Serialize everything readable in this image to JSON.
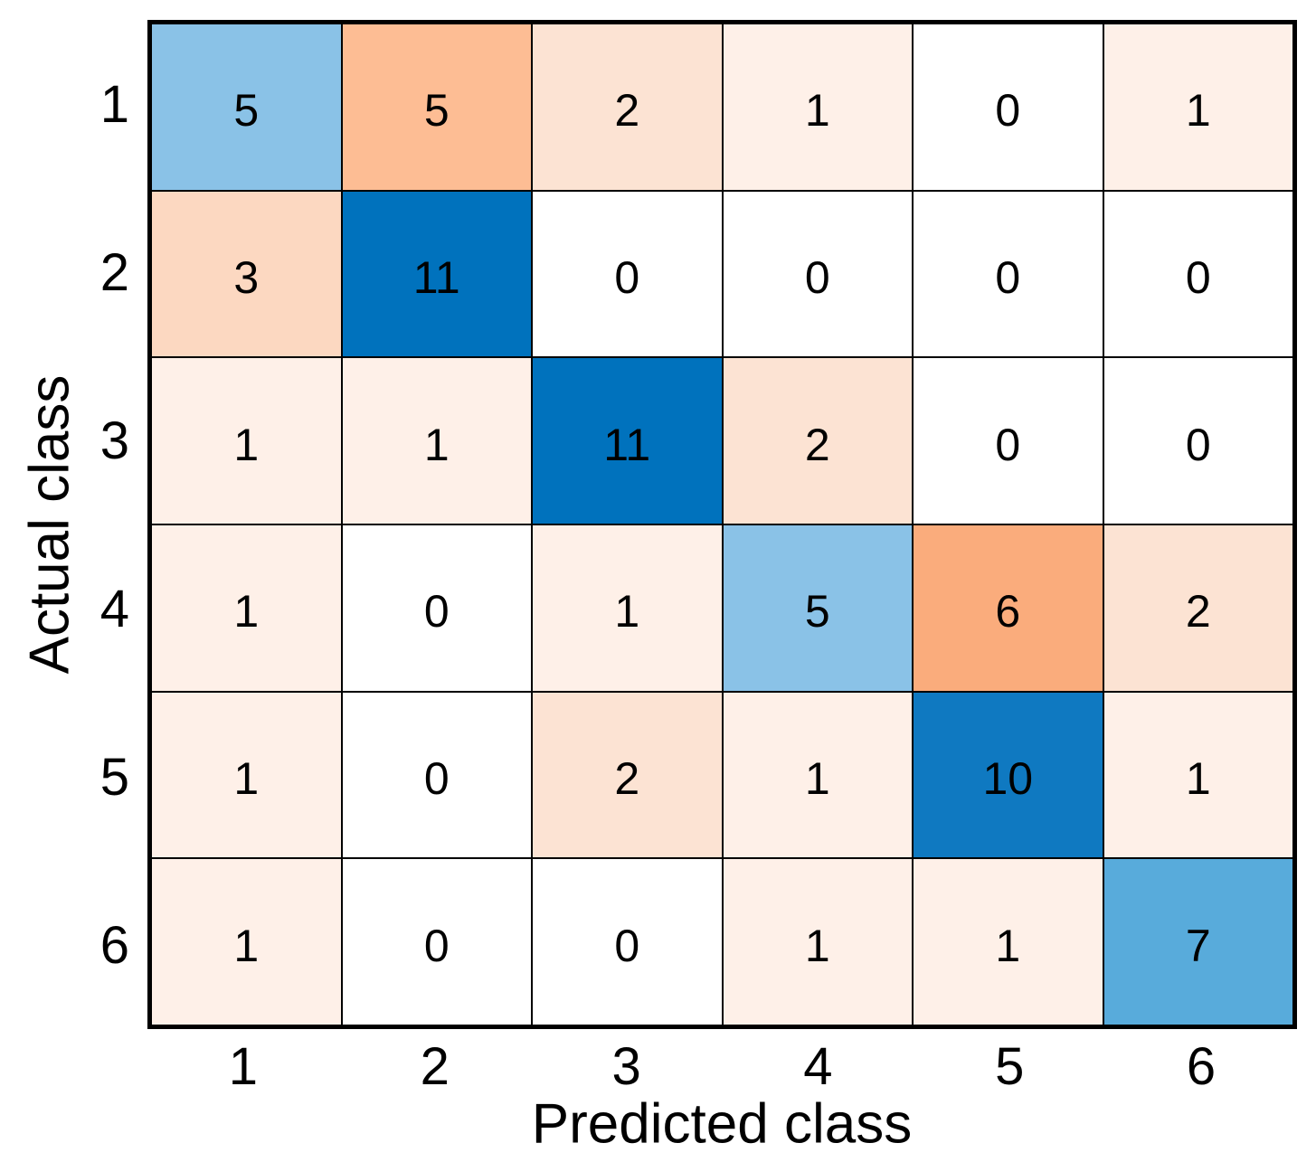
{
  "chart_data": {
    "type": "heatmap",
    "subtype": "confusion_matrix",
    "title": "",
    "xlabel": "Predicted class",
    "ylabel": "Actual class",
    "x_tick_labels": [
      "1",
      "2",
      "3",
      "4",
      "5",
      "6"
    ],
    "y_tick_labels": [
      "1",
      "2",
      "3",
      "4",
      "5",
      "6"
    ],
    "matrix": [
      [
        5,
        5,
        2,
        1,
        0,
        1
      ],
      [
        3,
        11,
        0,
        0,
        0,
        0
      ],
      [
        1,
        1,
        11,
        2,
        0,
        0
      ],
      [
        1,
        0,
        1,
        5,
        6,
        2
      ],
      [
        1,
        0,
        2,
        1,
        10,
        1
      ],
      [
        1,
        0,
        0,
        1,
        1,
        7
      ]
    ],
    "grid_on": true,
    "legend_position": "none",
    "color_scheme": {
      "background": "#FFFFFF",
      "grid_line": "#000000",
      "text": "#000000",
      "diagonal_base": "#0072BD",
      "off_diagonal_base": "#D95319",
      "diagonal_value_colors": {
        "5": "#8AC2E7",
        "7": "#58ABDB",
        "10": "#0F79C1",
        "11": "#0072BD"
      },
      "off_diagonal_value_colors": {
        "0": "#FFFFFF",
        "1": "#FEF0E8",
        "2": "#FCE3D3",
        "3": "#FCD8C1",
        "5": "#FDBD94",
        "6": "#FAAC7C"
      }
    }
  }
}
